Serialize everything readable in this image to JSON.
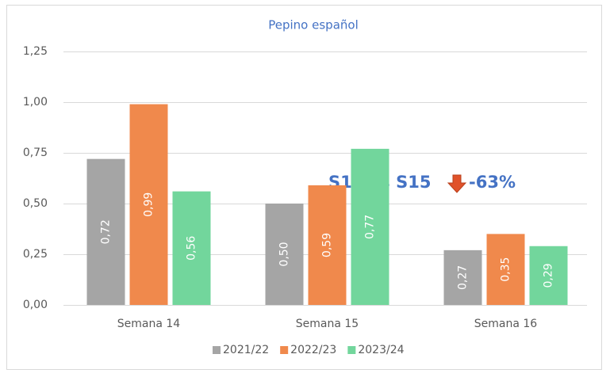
{
  "chart_data": {
    "type": "bar",
    "title": "Pepino español",
    "categories": [
      "Semana 14",
      "Semana 15",
      "Semana 16"
    ],
    "series": [
      {
        "name": "2021/22",
        "color": "#a5a5a5",
        "values": [
          0.72,
          0.5,
          0.27
        ],
        "value_labels": [
          "0,72",
          "0,50",
          "0,27"
        ]
      },
      {
        "name": "2022/23",
        "color": "#f0894c",
        "values": [
          0.99,
          0.59,
          0.35
        ],
        "value_labels": [
          "0,99",
          "0,59",
          "0,35"
        ]
      },
      {
        "name": "2023/24",
        "color": "#72d69c",
        "values": [
          0.56,
          0.77,
          0.29
        ],
        "value_labels": [
          "0,56",
          "0,77",
          "0,29"
        ]
      }
    ],
    "ylim": [
      0,
      1.25
    ],
    "yticks": [
      {
        "value": 0,
        "label": "0,00"
      },
      {
        "value": 0.25,
        "label": "0,25"
      },
      {
        "value": 0.5,
        "label": "0,50"
      },
      {
        "value": 0.75,
        "label": "0,75"
      },
      {
        "value": 1,
        "label": "1,00"
      },
      {
        "value": 1.25,
        "label": "1,25"
      }
    ],
    "grid": true,
    "legend": "bottom",
    "annotations": [
      "S16 vs S15",
      "-63%"
    ]
  }
}
